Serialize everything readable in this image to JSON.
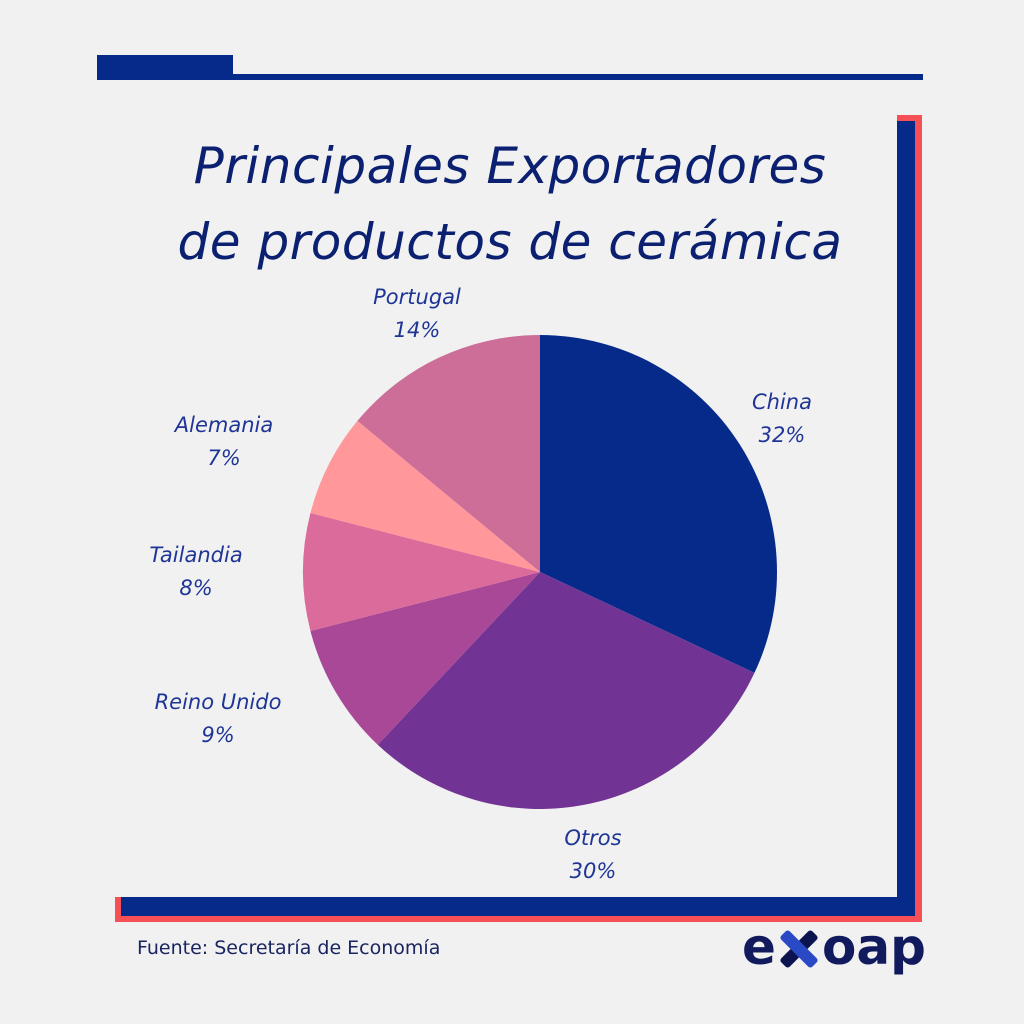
{
  "title_lines": [
    "Principales Exportadores",
    "de productos de cerámica"
  ],
  "source": "Fuente: Secretaría de Economía",
  "logo": "exoap",
  "colors": {
    "frame_blue": "#062a8a",
    "frame_red": "#f45056",
    "text": "#0b2070"
  },
  "chart_data": {
    "type": "pie",
    "title": "Principales Exportadores de productos de cerámica",
    "start": "top",
    "direction": "clockwise",
    "slices": [
      {
        "label": "China",
        "value": 32,
        "display": "32%",
        "color": "#062a8a"
      },
      {
        "label": "Otros",
        "value": 30,
        "display": "30%",
        "color": "#723494"
      },
      {
        "label": "Reino Unido",
        "value": 9,
        "display": "9%",
        "color": "#a84897"
      },
      {
        "label": "Tailandia",
        "value": 8,
        "display": "8%",
        "color": "#da6b9a"
      },
      {
        "label": "Alemania",
        "value": 7,
        "display": "7%",
        "color": "#ff979b"
      },
      {
        "label": "Portugal",
        "value": 14,
        "display": "14%",
        "color": "#cd6e98"
      }
    ]
  }
}
